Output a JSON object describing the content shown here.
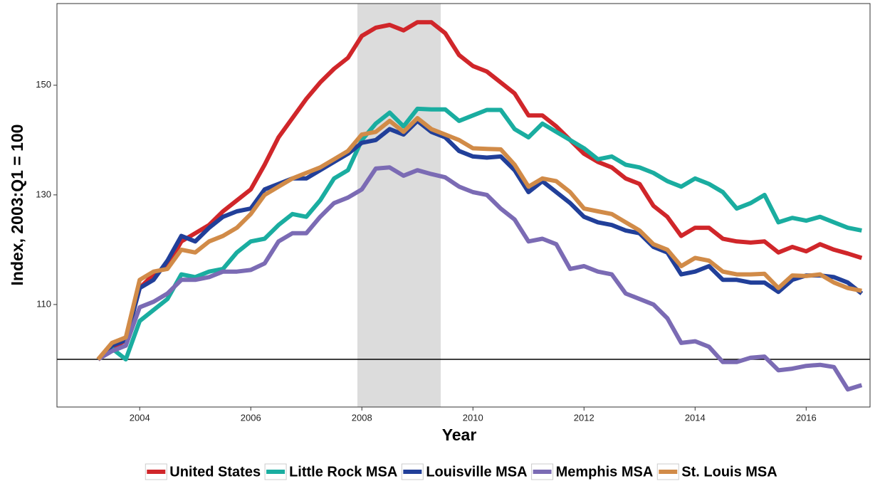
{
  "chart_data": {
    "type": "line",
    "x_label": "Year",
    "y_label": "Index, 2003:Q1 = 100",
    "x": [
      2003.25,
      2003.5,
      2003.75,
      2004,
      2004.25,
      2004.5,
      2004.75,
      2005,
      2005.25,
      2005.5,
      2005.75,
      2006,
      2006.25,
      2006.5,
      2006.75,
      2007,
      2007.25,
      2007.5,
      2007.75,
      2008,
      2008.25,
      2008.5,
      2008.75,
      2009,
      2009.25,
      2009.5,
      2009.75,
      2010,
      2010.25,
      2010.5,
      2010.75,
      2011,
      2011.25,
      2011.5,
      2011.75,
      2012,
      2012.25,
      2012.5,
      2012.75,
      2013,
      2013.25,
      2013.5,
      2013.75,
      2014,
      2014.25,
      2014.5,
      2014.75,
      2015,
      2015.25,
      2015.5,
      2015.75,
      2016,
      2016.25,
      2016.5,
      2016.75,
      2017
    ],
    "series": [
      {
        "name": "United States",
        "color": "#d0262a",
        "values": [
          100,
          102,
          103.5,
          113,
          115.5,
          117,
          121.5,
          123,
          124.5,
          127,
          129,
          131,
          135.5,
          140.5,
          144,
          147.5,
          150.5,
          153,
          155,
          159,
          160.5,
          161,
          160,
          161.5,
          161.5,
          159.5,
          155.5,
          153.5,
          152.5,
          150.5,
          148.5,
          144.5,
          144.5,
          142.5,
          140,
          137.5,
          136,
          135,
          133,
          132,
          128,
          126,
          122.5,
          124,
          124,
          122,
          121.5,
          121.3,
          121.5,
          119.5,
          120.5,
          119.7,
          121,
          120,
          119.3,
          118.5
        ]
      },
      {
        "name": "Little Rock MSA",
        "color": "#1aada0",
        "values": [
          100,
          102,
          100,
          107,
          109,
          111,
          115.5,
          115,
          116,
          116.5,
          119.5,
          121.5,
          122,
          124.5,
          126.5,
          126,
          129,
          133,
          134.5,
          140,
          143,
          145,
          142.5,
          145.7,
          145.6,
          145.6,
          143.5,
          144.5,
          145.5,
          145.5,
          142,
          140.5,
          143,
          141.5,
          140,
          138.5,
          136.5,
          137,
          135.5,
          135,
          134,
          132.5,
          131.5,
          133,
          132,
          130.5,
          127.5,
          128.5,
          130,
          125,
          125.8,
          125.3,
          126,
          125,
          124,
          123.5
        ]
      },
      {
        "name": "Louisville MSA",
        "color": "#213f99",
        "values": [
          100,
          102.5,
          103.5,
          113,
          114.5,
          118,
          122.5,
          121.5,
          124,
          126,
          127,
          127.5,
          131,
          132,
          133,
          133,
          134.5,
          136,
          137.5,
          139.5,
          140,
          142,
          141,
          143.5,
          141.5,
          140.5,
          138,
          137,
          136.8,
          137,
          134.5,
          130.5,
          132.5,
          130.5,
          128.5,
          126,
          125,
          124.5,
          123.5,
          123,
          120.5,
          119.5,
          115.5,
          116,
          117,
          114.5,
          114.5,
          114,
          114,
          112.3,
          114.5,
          115.3,
          115.3,
          115,
          114,
          112
        ]
      },
      {
        "name": "Memphis MSA",
        "color": "#7b6bb4",
        "values": [
          100,
          101.5,
          102.5,
          109.5,
          110.5,
          112,
          114.5,
          114.5,
          115,
          116,
          116,
          116.3,
          117.5,
          121.5,
          123,
          123,
          126,
          128.5,
          129.5,
          131,
          134.8,
          135,
          133.5,
          134.5,
          133.8,
          133.2,
          131.5,
          130.5,
          130,
          127.5,
          125.5,
          121.5,
          122,
          121,
          116.5,
          117,
          116,
          115.5,
          112,
          111,
          110,
          107.5,
          103,
          103.3,
          102.3,
          99.5,
          99.5,
          100.3,
          100.5,
          98,
          98.3,
          98.8,
          99,
          98.6,
          94.5,
          95.3
        ]
      },
      {
        "name": "St. Louis MSA",
        "color": "#d18b48",
        "values": [
          100,
          103,
          104,
          114.5,
          116,
          116.5,
          120,
          119.5,
          121.5,
          122.5,
          124,
          126.5,
          130,
          131.5,
          133,
          134,
          135,
          136.5,
          138,
          141,
          141.5,
          143.5,
          141.5,
          144,
          142,
          141,
          140,
          138.5,
          138.4,
          138.3,
          135.5,
          131.5,
          133,
          132.5,
          130.5,
          127.5,
          127,
          126.5,
          125,
          123.5,
          121,
          120,
          117,
          118.5,
          118,
          116,
          115.5,
          115.5,
          115.6,
          113,
          115.3,
          115.2,
          115.5,
          114,
          113,
          112.5
        ]
      }
    ],
    "xlim": [
      2002.51,
      2017.15
    ],
    "ylim": [
      91.3,
      164.9
    ],
    "xticks": [
      2004,
      2006,
      2008,
      2010,
      2012,
      2014,
      2016
    ],
    "yticks": [
      110,
      130,
      150
    ],
    "hline": 100,
    "shaded_region": {
      "xmin": 2007.92,
      "xmax": 2009.42
    },
    "legend": "bottom"
  }
}
